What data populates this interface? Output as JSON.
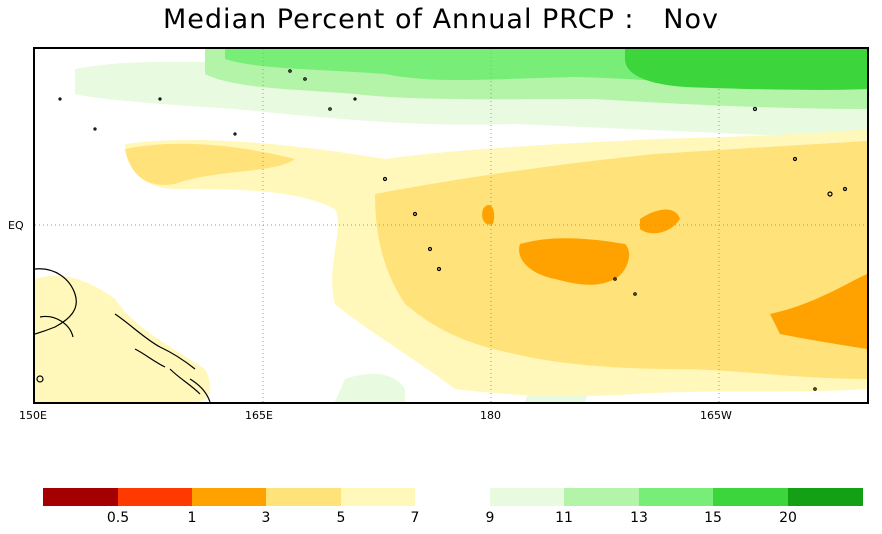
{
  "title": "Median Percent of Annual PRCP :   Nov",
  "x_axis_labels": [
    "150E",
    "165E",
    "180",
    "165W"
  ],
  "y_axis_labels": [
    "EQ"
  ],
  "legend": {
    "colors": [
      "#a40000",
      "#ff3a00",
      "#ffa200",
      "#ffe37a",
      "#fff8ba",
      "#ffffff",
      "#e8fae0",
      "#b4f4a8",
      "#78ee78",
      "#3cd63c",
      "#14a014"
    ],
    "labels": [
      "0.5",
      "1",
      "3",
      "5",
      "7",
      "9",
      "11",
      "13",
      "15",
      "20"
    ]
  }
}
